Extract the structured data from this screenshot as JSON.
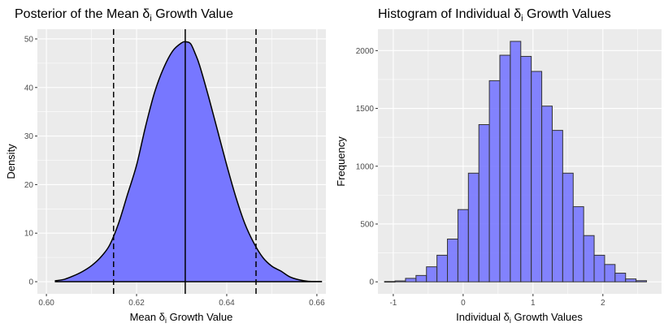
{
  "chart_data": [
    {
      "type": "area",
      "title": "Posterior of the Mean δ",
      "title_sub": "i",
      "title_tail": " Growth Value",
      "xlabel": "Mean δ",
      "xlabel_sub": "i",
      "xlabel_tail": " Growth Value",
      "ylabel": "Density",
      "xlim": [
        0.598,
        0.662
      ],
      "ylim": [
        -2.5,
        52
      ],
      "x_ticks": [
        0.6,
        0.62,
        0.64,
        0.66
      ],
      "x_tick_labels": [
        "0.60",
        "0.62",
        "0.64",
        "0.66"
      ],
      "y_ticks": [
        0,
        10,
        20,
        30,
        40,
        50
      ],
      "y_tick_labels": [
        "0",
        "10",
        "20",
        "30",
        "40",
        "50"
      ],
      "fill_color": "#7777ff",
      "line_color": "#000000",
      "mean_line": 0.6308,
      "interval_lines": [
        0.6149,
        0.6465
      ],
      "density": {
        "x": [
          0.602,
          0.604,
          0.606,
          0.608,
          0.61,
          0.612,
          0.614,
          0.616,
          0.618,
          0.62,
          0.622,
          0.624,
          0.626,
          0.628,
          0.63,
          0.631,
          0.632,
          0.633,
          0.634,
          0.636,
          0.638,
          0.64,
          0.642,
          0.644,
          0.646,
          0.648,
          0.65,
          0.652,
          0.654,
          0.656,
          0.658,
          0.661
        ],
        "y": [
          0.2,
          0.5,
          1.2,
          2.1,
          3.3,
          5.0,
          7.5,
          12.0,
          18.0,
          24.0,
          32.0,
          39.0,
          44.0,
          47.5,
          49.2,
          49.4,
          49.0,
          47.0,
          44.5,
          38.0,
          31.0,
          24.0,
          17.5,
          12.0,
          8.0,
          5.0,
          3.2,
          2.2,
          1.0,
          0.4,
          0.1,
          0.05
        ]
      }
    },
    {
      "type": "bar",
      "title": "Histogram of Individual δ",
      "title_sub": "i",
      "title_tail": " Growth Values",
      "xlabel": "Individual δ",
      "xlabel_sub": "i",
      "xlabel_tail": " Growth Values",
      "ylabel": "Frequency",
      "xlim": [
        -1.22,
        2.84
      ],
      "ylim": [
        -104,
        2185
      ],
      "x_ticks": [
        -1,
        0,
        1,
        2
      ],
      "x_tick_labels": [
        "-1",
        "0",
        "1",
        "2"
      ],
      "y_ticks": [
        0,
        500,
        1000,
        1500,
        2000
      ],
      "y_tick_labels": [
        "0",
        "500",
        "1000",
        "1500",
        "2000"
      ],
      "fill_color": "#7777ff",
      "bin_width": 0.15,
      "bin_centers": [
        -1.05,
        -0.9,
        -0.75,
        -0.6,
        -0.45,
        -0.3,
        -0.15,
        0.0,
        0.15,
        0.3,
        0.45,
        0.6,
        0.75,
        0.9,
        1.05,
        1.2,
        1.35,
        1.5,
        1.65,
        1.8,
        1.95,
        2.1,
        2.25,
        2.4,
        2.55
      ],
      "counts": [
        3,
        8,
        30,
        55,
        130,
        230,
        370,
        625,
        940,
        1360,
        1740,
        1960,
        2080,
        1950,
        1820,
        1520,
        1310,
        940,
        650,
        400,
        230,
        150,
        75,
        25,
        10
      ]
    }
  ]
}
